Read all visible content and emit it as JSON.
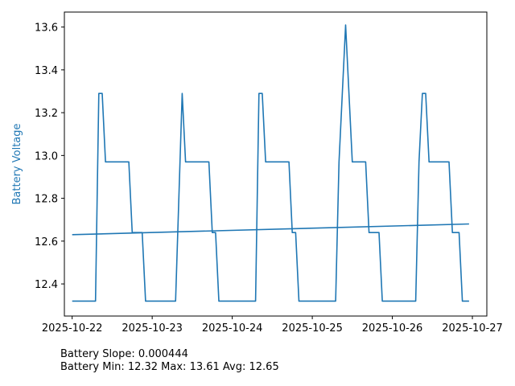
{
  "colors": {
    "series": "#1f77b4",
    "axes": "#000000"
  },
  "chart_data": {
    "type": "line",
    "title": "",
    "xlabel": "",
    "ylabel": "Battery Voltage",
    "xlim": [
      "2025-10-21 21:40",
      "2025-10-27 04:20"
    ],
    "ylim": [
      12.25,
      13.67
    ],
    "x_ticks": [
      "2025-10-22",
      "2025-10-23",
      "2025-10-24",
      "2025-10-25",
      "2025-10-26",
      "2025-10-27"
    ],
    "y_ticks": [
      12.4,
      12.6,
      12.8,
      13.0,
      13.2,
      13.4,
      13.6
    ],
    "y_tick_labels": [
      "12.4",
      "12.6",
      "12.8",
      "13.0",
      "13.2",
      "13.4",
      "13.6"
    ],
    "grid": false,
    "legend": "none",
    "series": [
      {
        "values": [
          [
            "2025-10-22 00:00",
            12.32
          ],
          [
            "2025-10-22 07:00",
            12.32
          ],
          [
            "2025-10-22 08:00",
            13.29
          ],
          [
            "2025-10-22 09:00",
            13.29
          ],
          [
            "2025-10-22 10:00",
            12.97
          ],
          [
            "2025-10-22 17:00",
            12.97
          ],
          [
            "2025-10-22 18:00",
            12.64
          ],
          [
            "2025-10-22 21:00",
            12.64
          ],
          [
            "2025-10-22 22:00",
            12.32
          ],
          [
            "2025-10-23 07:00",
            12.32
          ],
          [
            "2025-10-23 09:00",
            13.29
          ],
          [
            "2025-10-23 10:00",
            12.97
          ],
          [
            "2025-10-23 17:00",
            12.97
          ],
          [
            "2025-10-23 18:00",
            12.64
          ],
          [
            "2025-10-23 19:00",
            12.64
          ],
          [
            "2025-10-23 20:00",
            12.32
          ],
          [
            "2025-10-24 07:00",
            12.32
          ],
          [
            "2025-10-24 08:00",
            13.29
          ],
          [
            "2025-10-24 09:00",
            13.29
          ],
          [
            "2025-10-24 10:00",
            12.97
          ],
          [
            "2025-10-24 17:00",
            12.97
          ],
          [
            "2025-10-24 18:00",
            12.64
          ],
          [
            "2025-10-24 19:00",
            12.64
          ],
          [
            "2025-10-24 20:00",
            12.32
          ],
          [
            "2025-10-25 07:00",
            12.32
          ],
          [
            "2025-10-25 08:00",
            12.97
          ],
          [
            "2025-10-25 10:00",
            13.61
          ],
          [
            "2025-10-25 12:00",
            12.97
          ],
          [
            "2025-10-25 16:00",
            12.97
          ],
          [
            "2025-10-25 17:00",
            12.64
          ],
          [
            "2025-10-25 20:00",
            12.64
          ],
          [
            "2025-10-25 21:00",
            12.32
          ],
          [
            "2025-10-26 07:00",
            12.32
          ],
          [
            "2025-10-26 08:00",
            12.97
          ],
          [
            "2025-10-26 09:00",
            13.29
          ],
          [
            "2025-10-26 10:00",
            13.29
          ],
          [
            "2025-10-26 11:00",
            12.97
          ],
          [
            "2025-10-26 17:00",
            12.97
          ],
          [
            "2025-10-26 18:00",
            12.64
          ],
          [
            "2025-10-26 20:00",
            12.64
          ],
          [
            "2025-10-26 21:00",
            12.32
          ],
          [
            "2025-10-26 23:00",
            12.32
          ]
        ]
      },
      {
        "type": "trend",
        "values": [
          [
            "2025-10-22 00:00",
            12.63
          ],
          [
            "2025-10-26 23:00",
            12.68
          ]
        ]
      }
    ]
  },
  "notes": {
    "slope_text": "Battery Slope: 0.000444",
    "stats_text": "Battery Min: 12.32 Max: 13.61 Avg: 12.65"
  }
}
